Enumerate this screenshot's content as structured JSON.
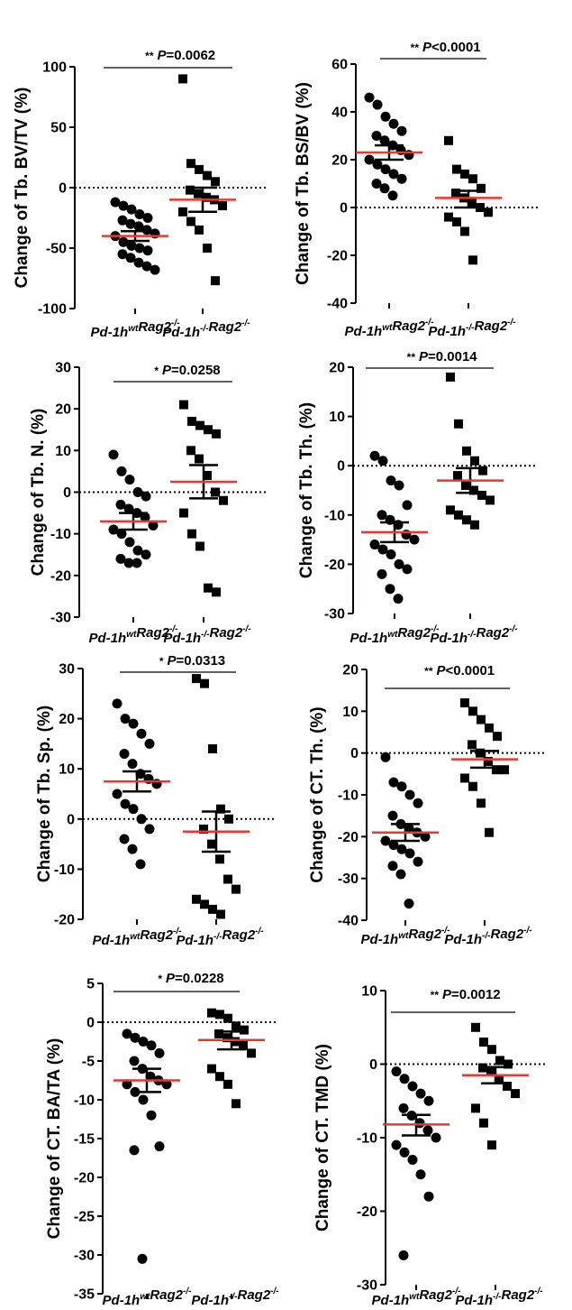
{
  "chart_data": [
    {
      "type": "scatter",
      "ylabel": "Change of Tb. BV/TV (%)",
      "ylim": [
        -100,
        100
      ],
      "yticks": [
        100,
        50,
        0,
        -50,
        -100
      ],
      "categories": [
        "Pd-1h^wt Rag2^-/-",
        "Pd-1h^-/- Rag2^-/-"
      ],
      "series": [
        {
          "values": [
            -12,
            -15,
            -18,
            -22,
            -25,
            -27,
            -30,
            -32,
            -35,
            -38,
            -40,
            -45,
            -48,
            -50,
            -52,
            -55,
            -58,
            -62,
            -65,
            -68
          ],
          "mean": -40,
          "sem_lower": -44,
          "sem_upper": -36
        },
        {
          "values": [
            90,
            20,
            15,
            10,
            5,
            -2,
            -5,
            -8,
            -10,
            -15,
            -20,
            -28,
            -35,
            -50,
            -77
          ],
          "mean": -10,
          "sem_lower": -20,
          "sem_upper": 0
        }
      ],
      "stars": "**",
      "p_text": "P=0.0062"
    },
    {
      "type": "scatter",
      "ylabel": "Change of Tb. BS/BV (%)",
      "ylim": [
        -40,
        60
      ],
      "yticks": [
        60,
        40,
        20,
        0,
        -20,
        -40
      ],
      "categories": [
        "Pd-1h^wt Rag2^-/-",
        "Pd-1h^-/- Rag2^-/-"
      ],
      "series": [
        {
          "values": [
            46,
            43,
            38,
            35,
            32,
            30,
            28,
            26,
            24,
            22,
            20,
            18,
            16,
            14,
            12,
            10,
            8,
            5
          ],
          "mean": 23,
          "sem_lower": 20,
          "sem_upper": 26
        },
        {
          "values": [
            28,
            16,
            14,
            12,
            8,
            6,
            4,
            2,
            0,
            -2,
            -4,
            -6,
            -10,
            -22
          ],
          "mean": 4,
          "sem_lower": 0,
          "sem_upper": 7
        }
      ],
      "stars": "**",
      "p_text": "P<0.0001"
    },
    {
      "type": "scatter",
      "ylabel": "Change of Tb. N. (%)",
      "ylim": [
        -30,
        30
      ],
      "yticks": [
        30,
        20,
        10,
        0,
        -10,
        -20,
        -30
      ],
      "categories": [
        "Pd-1h^wt Rag2^-/-",
        "Pd-1h^-/- Rag2^-/-"
      ],
      "series": [
        {
          "values": [
            9,
            5,
            3,
            0,
            -1,
            -3,
            -4,
            -5,
            -6,
            -8,
            -9,
            -10,
            -12,
            -14,
            -15,
            -16,
            -17,
            -17
          ],
          "mean": -7,
          "sem_lower": -9,
          "sem_upper": -5
        },
        {
          "values": [
            21,
            17,
            16,
            15,
            14,
            10,
            8,
            4,
            0,
            -2,
            -5,
            -10,
            -13,
            -23,
            -24
          ],
          "mean": 2.5,
          "sem_lower": -1.5,
          "sem_upper": 6.5
        }
      ],
      "stars": "*",
      "p_text": "P=0.0258"
    },
    {
      "type": "scatter",
      "ylabel": "Change of Tb. Th. (%)",
      "ylim": [
        -30,
        20
      ],
      "yticks": [
        20,
        10,
        0,
        -10,
        -20,
        -30
      ],
      "categories": [
        "Pd-1h^wt Rag2^-/-",
        "Pd-1h^-/- Rag2^-/-"
      ],
      "series": [
        {
          "values": [
            2,
            1,
            -3,
            -4,
            -8,
            -10,
            -11,
            -12,
            -14,
            -15,
            -16,
            -17,
            -18,
            -20,
            -21,
            -22,
            -25,
            -27
          ],
          "mean": -13.5,
          "sem_lower": -15.5,
          "sem_upper": -11.5
        },
        {
          "values": [
            18,
            8.5,
            3,
            1,
            -1,
            -2,
            -4,
            -5,
            -6,
            -7,
            -9,
            -10,
            -11,
            -12
          ],
          "mean": -3,
          "sem_lower": -5.5,
          "sem_upper": -0.5
        }
      ],
      "stars": "**",
      "p_text": "P=0.0014"
    },
    {
      "type": "scatter",
      "ylabel": "Change of Tb. Sp. (%)",
      "ylim": [
        -20,
        30
      ],
      "yticks": [
        30,
        20,
        10,
        0,
        -10,
        -20
      ],
      "categories": [
        "Pd-1h^wt Rag2^-/-",
        "Pd-1h^-/- Rag2^-/-"
      ],
      "series": [
        {
          "values": [
            23,
            20,
            19,
            17,
            15,
            13,
            11,
            9,
            8,
            7,
            5,
            3,
            2,
            0,
            -2,
            -4,
            -6,
            -9
          ],
          "mean": 7.5,
          "sem_lower": 5.5,
          "sem_upper": 9.5
        },
        {
          "values": [
            28,
            27,
            14,
            2,
            0,
            -2,
            -5,
            -8,
            -12,
            -14,
            -16,
            -17,
            -18,
            -19
          ],
          "mean": -2.5,
          "sem_lower": -6.5,
          "sem_upper": 1.5
        }
      ],
      "stars": "*",
      "p_text": "P=0.0313"
    },
    {
      "type": "scatter",
      "ylabel": "Change of CT. Th. (%)",
      "ylim": [
        -40,
        20
      ],
      "yticks": [
        20,
        10,
        0,
        -10,
        -20,
        -30,
        -40
      ],
      "categories": [
        "Pd-1h^wt Rag2^-/-",
        "Pd-1h^-/- Rag2^-/-"
      ],
      "series": [
        {
          "values": [
            -1,
            -7,
            -8,
            -10,
            -12,
            -15,
            -17,
            -18,
            -19,
            -20,
            -21,
            -22,
            -23,
            -24,
            -26,
            -27,
            -29,
            -36
          ],
          "mean": -19,
          "sem_lower": -21,
          "sem_upper": -17
        },
        {
          "values": [
            12,
            10,
            8,
            6,
            4,
            2,
            0,
            -2,
            -4,
            -4,
            -6,
            -8,
            -12,
            -19
          ],
          "mean": -1.5,
          "sem_lower": -3.5,
          "sem_upper": 0.5
        }
      ],
      "stars": "**",
      "p_text": "P<0.0001"
    },
    {
      "type": "scatter",
      "ylabel": "Change of CT. BA/TA (%)",
      "ylim": [
        -35,
        5
      ],
      "yticks": [
        5,
        0,
        -5,
        -10,
        -15,
        -20,
        -25,
        -30,
        -35
      ],
      "categories": [
        "Pd-1h^wt Rag2^-/-",
        "Pd-1h^-/- Rag2^-/-"
      ],
      "series": [
        {
          "values": [
            -1.5,
            -2,
            -2.5,
            -3,
            -4,
            -5,
            -6,
            -7,
            -7.5,
            -8,
            -8,
            -9,
            -10,
            -12,
            -16,
            -16.5,
            -30.5
          ],
          "mean": -7.5,
          "sem_lower": -9,
          "sem_upper": -6
        },
        {
          "values": [
            1.2,
            1,
            0.5,
            -0.5,
            -1,
            -1.5,
            -2,
            -2.5,
            -3,
            -4,
            -6,
            -7,
            -8,
            -10.5
          ],
          "mean": -2.3,
          "sem_lower": -3.5,
          "sem_upper": -1.2
        }
      ],
      "stars": "*",
      "p_text": "P=0.0228"
    },
    {
      "type": "scatter",
      "ylabel": "Change of CT. TMD (%)",
      "ylim": [
        -30,
        10
      ],
      "yticks": [
        10,
        0,
        -10,
        -20,
        -30
      ],
      "categories": [
        "Pd-1h^wt Rag2^-/-",
        "Pd-1h^-/- Rag2^-/-"
      ],
      "series": [
        {
          "values": [
            -1,
            -2,
            -3,
            -4,
            -5,
            -6,
            -7,
            -8,
            -9,
            -10,
            -11,
            -12,
            -13,
            -15,
            -18,
            -26
          ],
          "mean": -8.2,
          "sem_lower": -9.7,
          "sem_upper": -6.9
        },
        {
          "values": [
            5,
            3,
            2,
            0.5,
            0,
            -0.5,
            -1,
            -2,
            -3,
            -4,
            -6,
            -8,
            -11
          ],
          "mean": -1.5,
          "sem_lower": -2.6,
          "sem_upper": -0.4
        }
      ],
      "stars": "**",
      "p_text": "P=0.0012"
    }
  ],
  "colors": {
    "mean_line": "#e8392b",
    "points": "#000000"
  }
}
